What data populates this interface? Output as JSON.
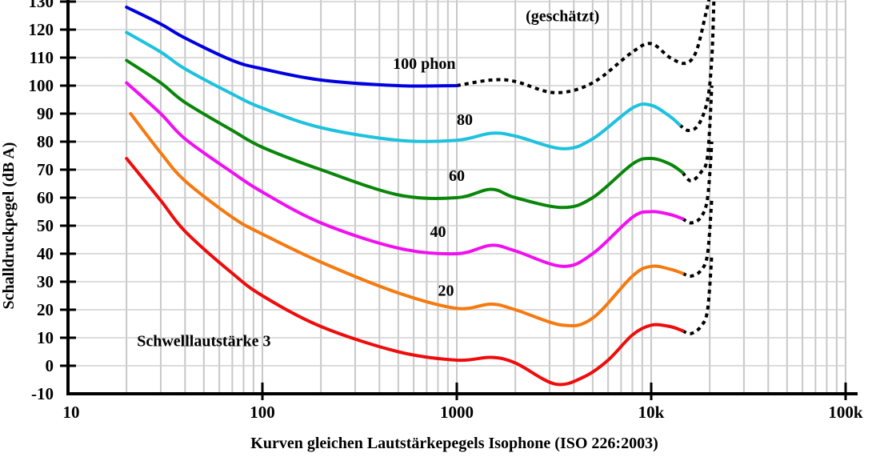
{
  "chart_data": {
    "type": "line",
    "title": "",
    "xlabel": "Kurven gleichen Lautstärkepegels Isophone (ISO 226:2003)",
    "ylabel": "Schalldruckpegel (dB A)",
    "xscale": "log",
    "xlim": [
      10,
      100000
    ],
    "ylim": [
      -10,
      130
    ],
    "grid": true,
    "legend": "none",
    "x_ticks": [
      {
        "value": 10,
        "label": "10"
      },
      {
        "value": 100,
        "label": "100"
      },
      {
        "value": 1000,
        "label": "1000"
      },
      {
        "value": 10000,
        "label": "10k"
      },
      {
        "value": 100000,
        "label": "100k"
      }
    ],
    "y_ticks": [
      -10,
      0,
      10,
      20,
      30,
      40,
      50,
      60,
      70,
      80,
      90,
      100,
      110,
      120,
      130
    ],
    "series": [
      {
        "name": "100 phon",
        "color": "#0000e0",
        "points": [
          [
            20,
            128
          ],
          [
            30,
            122
          ],
          [
            40,
            117
          ],
          [
            70,
            109
          ],
          [
            100,
            106
          ],
          [
            200,
            102
          ],
          [
            500,
            100
          ],
          [
            1000,
            100
          ]
        ],
        "estimated": [
          [
            1000,
            100
          ],
          [
            1500,
            102
          ],
          [
            2000,
            101.5
          ],
          [
            3200,
            97.5
          ],
          [
            5000,
            101
          ],
          [
            8000,
            112
          ],
          [
            10000,
            115
          ],
          [
            12500,
            110
          ],
          [
            15000,
            108
          ],
          [
            17000,
            112
          ],
          [
            19000,
            125
          ],
          [
            20000,
            132
          ]
        ]
      },
      {
        "name": "80 phon",
        "color": "#1ec2de",
        "points": [
          [
            20,
            119
          ],
          [
            30,
            112
          ],
          [
            40,
            106
          ],
          [
            70,
            97
          ],
          [
            100,
            92
          ],
          [
            200,
            85
          ],
          [
            500,
            80.5
          ],
          [
            1000,
            80.5
          ],
          [
            1500,
            83
          ],
          [
            2000,
            82
          ],
          [
            3500,
            77.5
          ],
          [
            5000,
            81
          ],
          [
            8000,
            92
          ],
          [
            10000,
            93
          ],
          [
            12500,
            89
          ],
          [
            14000,
            86
          ]
        ],
        "estimated": [
          [
            14000,
            86
          ],
          [
            15500,
            84
          ],
          [
            17500,
            86
          ],
          [
            19500,
            95
          ],
          [
            20500,
            110
          ],
          [
            21000,
            130
          ]
        ]
      },
      {
        "name": "60 phon",
        "color": "#0a860a",
        "points": [
          [
            20,
            109
          ],
          [
            30,
            101
          ],
          [
            40,
            94
          ],
          [
            70,
            84
          ],
          [
            100,
            78
          ],
          [
            200,
            70
          ],
          [
            500,
            61
          ],
          [
            1000,
            60
          ],
          [
            1500,
            63
          ],
          [
            2000,
            60
          ],
          [
            3500,
            56.5
          ],
          [
            5000,
            60
          ],
          [
            8000,
            72
          ],
          [
            10000,
            74
          ],
          [
            12500,
            72
          ],
          [
            14500,
            69
          ]
        ],
        "estimated": [
          [
            14500,
            69
          ],
          [
            16000,
            66
          ],
          [
            18000,
            69
          ],
          [
            19500,
            75
          ],
          [
            20500,
            100
          ]
        ]
      },
      {
        "name": "40 phon",
        "color": "#f010f0",
        "points": [
          [
            20,
            101
          ],
          [
            30,
            90
          ],
          [
            40,
            81
          ],
          [
            70,
            69
          ],
          [
            100,
            62
          ],
          [
            200,
            51
          ],
          [
            500,
            42
          ],
          [
            1000,
            40
          ],
          [
            1500,
            43
          ],
          [
            2000,
            41
          ],
          [
            3500,
            35.5
          ],
          [
            5000,
            40
          ],
          [
            8000,
            53
          ],
          [
            10000,
            55
          ],
          [
            12500,
            54
          ],
          [
            14500,
            52.5
          ]
        ],
        "estimated": [
          [
            14500,
            52.5
          ],
          [
            16000,
            51
          ],
          [
            18000,
            53
          ],
          [
            19500,
            60
          ],
          [
            20500,
            80
          ]
        ]
      },
      {
        "name": "20 phon",
        "color": "#f57a10",
        "points": [
          [
            21,
            90
          ],
          [
            30,
            76
          ],
          [
            40,
            66
          ],
          [
            70,
            53
          ],
          [
            100,
            47
          ],
          [
            200,
            37
          ],
          [
            500,
            26
          ],
          [
            1000,
            20.5
          ],
          [
            1500,
            22
          ],
          [
            2000,
            20
          ],
          [
            3500,
            14.5
          ],
          [
            5000,
            17
          ],
          [
            8000,
            32
          ],
          [
            10000,
            35.5
          ],
          [
            12500,
            34.5
          ],
          [
            14500,
            33
          ]
        ],
        "estimated": [
          [
            14500,
            33
          ],
          [
            16000,
            32
          ],
          [
            18000,
            34
          ],
          [
            19500,
            40
          ],
          [
            20500,
            60
          ]
        ]
      },
      {
        "name": "Schwelllautstärke 3",
        "color": "#ee0c0c",
        "points": [
          [
            20,
            74
          ],
          [
            30,
            59
          ],
          [
            40,
            48
          ],
          [
            70,
            33
          ],
          [
            100,
            25
          ],
          [
            200,
            14
          ],
          [
            500,
            5
          ],
          [
            1000,
            2
          ],
          [
            1500,
            3
          ],
          [
            2000,
            1
          ],
          [
            3200,
            -6.5
          ],
          [
            4500,
            -4
          ],
          [
            6000,
            2
          ],
          [
            8000,
            11
          ],
          [
            10000,
            14.5
          ],
          [
            12500,
            14
          ],
          [
            14500,
            12.5
          ]
        ],
        "estimated": [
          [
            14500,
            12.5
          ],
          [
            16000,
            11.5
          ],
          [
            18000,
            14
          ],
          [
            19500,
            20
          ],
          [
            20500,
            40
          ]
        ]
      }
    ],
    "annotations": [
      {
        "text": "(geschätzt)",
        "x": 3500,
        "y": 123
      },
      {
        "text": "100 phon",
        "x": 680,
        "y": 106
      },
      {
        "text": "80",
        "x": 1100,
        "y": 86
      },
      {
        "text": "60",
        "x": 1000,
        "y": 66
      },
      {
        "text": "40",
        "x": 800,
        "y": 46
      },
      {
        "text": "20",
        "x": 880,
        "y": 25
      },
      {
        "text": "Schwelllautstärke 3",
        "x": 50,
        "y": 7
      }
    ]
  }
}
